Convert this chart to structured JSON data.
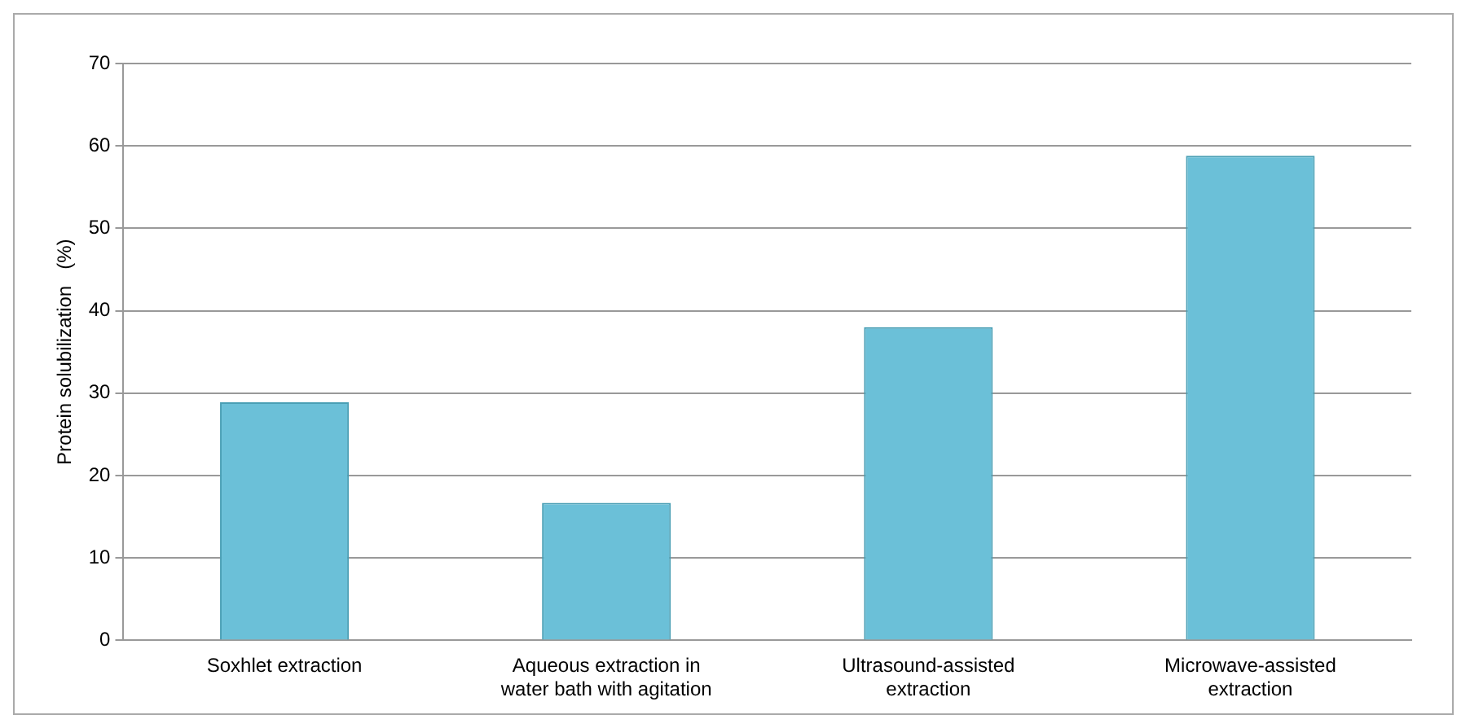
{
  "chart_data": {
    "type": "bar",
    "ylabel": "Protein solubilization   (%)",
    "categories": [
      "Soxhlet extraction",
      "Aqueous extraction in water bath with agitation",
      "Ultrasound-assisted extraction",
      "Microwave-assisted extraction"
    ],
    "values": [
      28.9,
      16.7,
      38.0,
      58.8
    ],
    "color": "#6bc0d8",
    "ylim": [
      0,
      70
    ],
    "yticks": [
      0,
      10,
      20,
      30,
      40,
      50,
      60,
      70
    ],
    "grid": "y",
    "legend": false
  }
}
